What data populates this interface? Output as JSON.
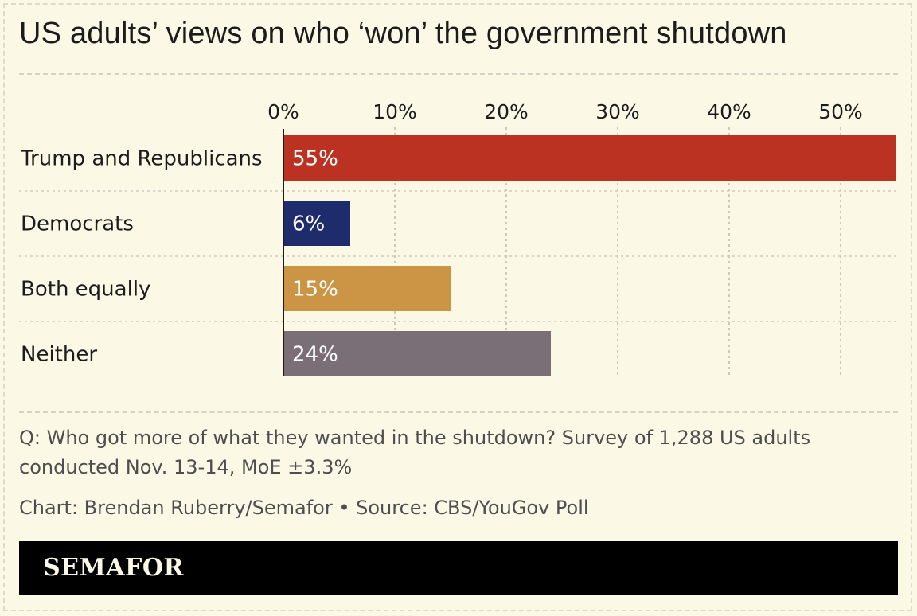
{
  "title": "US adults’ views on who ‘won’ the government shutdown",
  "chart_data": {
    "type": "bar",
    "orientation": "horizontal",
    "categories": [
      "Trump and Republicans",
      "Democrats",
      "Both equally",
      "Neither"
    ],
    "values": [
      55,
      6,
      15,
      24
    ],
    "value_labels": [
      "55%",
      "6%",
      "15%",
      "24%"
    ],
    "colors": [
      "#bc3222",
      "#1e2c6b",
      "#cc9545",
      "#7a6e77"
    ],
    "xlim": [
      0,
      55
    ],
    "xticks": [
      0,
      10,
      20,
      30,
      40,
      50
    ],
    "xtick_labels": [
      "0%",
      "10%",
      "20%",
      "30%",
      "40%",
      "50%"
    ],
    "grid": true,
    "axis_position": "top"
  },
  "note": "Q: Who got more of what they wanted in the shutdown? Survey of 1,288 US adults conducted Nov. 13-14, MoE ±3.3%",
  "credit": "Chart: Brendan Ruberry/Semafor • Source: CBS/YouGov Poll",
  "footer": {
    "brand": "SEMAFOR"
  }
}
